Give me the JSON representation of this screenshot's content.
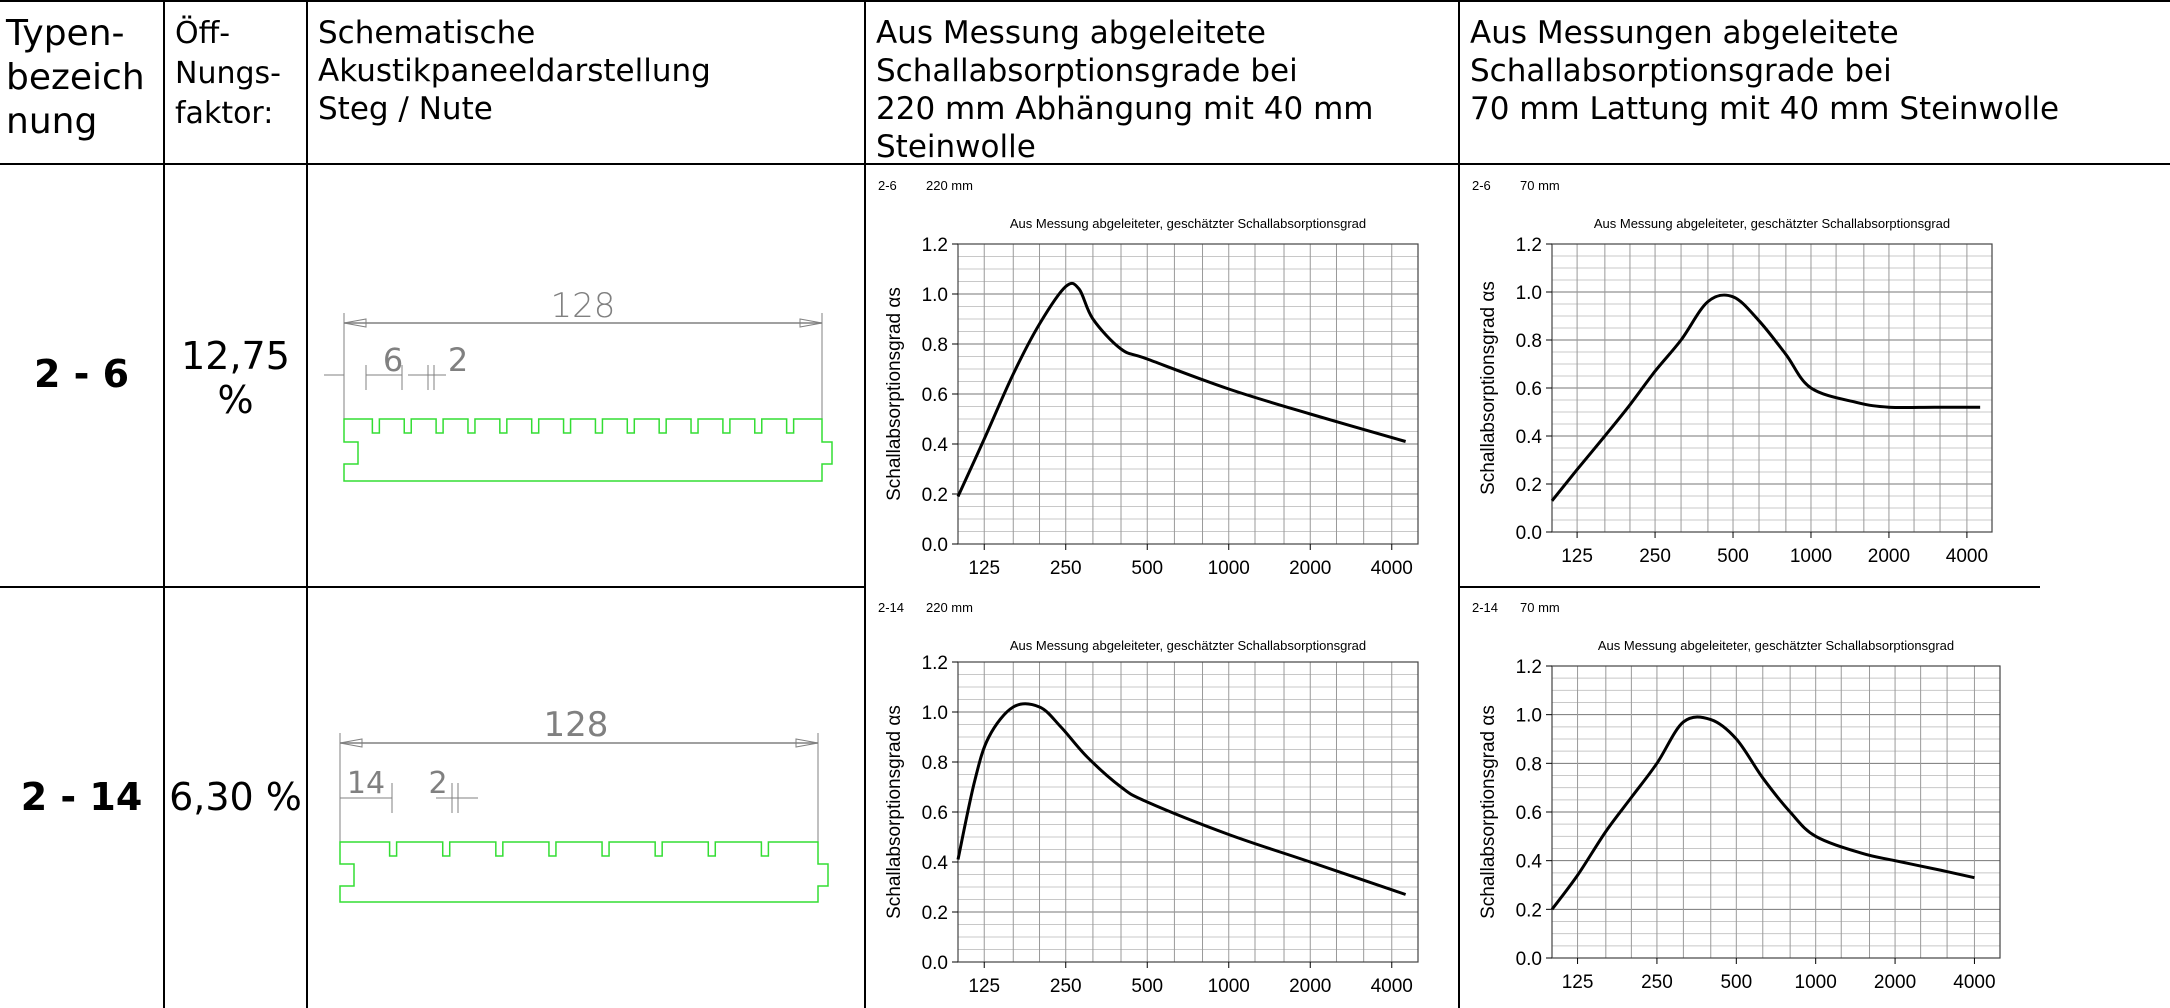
{
  "header": {
    "col1": [
      "Typen-",
      "bezeich",
      "nung"
    ],
    "col2": [
      "Öff-",
      "Nungs-",
      "faktor:"
    ],
    "col3": [
      "Schematische",
      "Akustikpaneeldarstellung",
      "Steg / Nute"
    ],
    "col4": [
      "Aus Messung abgeleitete",
      "Schallabsorptionsgrade bei",
      "220 mm Abhängung mit 40 mm",
      "Steinwolle"
    ],
    "col5": [
      "Aus Messungen abgeleitete",
      "Schallabsorptionsgrade bei",
      "70 mm Lattung mit 40 mm Steinwolle"
    ]
  },
  "rows": [
    {
      "type": "2 - 6",
      "factor": [
        "12,75",
        "%"
      ],
      "drawing": {
        "total": "128",
        "web": "6",
        "slot": "2",
        "slot_count": 14
      },
      "charts": [
        {
          "tag": "2-6",
          "mount": "220 mm",
          "title": "Aus Messung abgeleiteter, geschätzter Schallabsorptionsgrad",
          "ylabel": "Schallabsorptionsgrad αs",
          "yticks": [
            "0.0",
            "0.2",
            "0.4",
            "0.6",
            "0.8",
            "1.0",
            "1.2"
          ],
          "xticks": [
            "125",
            "250",
            "500",
            "1000",
            "2000",
            "4000"
          ]
        },
        {
          "tag": "2-6",
          "mount": "70 mm",
          "title": "Aus Messung abgeleiteter, geschätzter Schallabsorptionsgrad",
          "ylabel": "Schallabsorptionsgrad αs",
          "yticks": [
            "0.0",
            "0.2",
            "0.4",
            "0.6",
            "0.8",
            "1.0",
            "1.2"
          ],
          "xticks": [
            "125",
            "250",
            "500",
            "1000",
            "2000",
            "4000"
          ]
        }
      ]
    },
    {
      "type": "2 - 14",
      "factor": [
        "6,30 %"
      ],
      "drawing": {
        "total": "128",
        "web": "14",
        "slot": "2",
        "slot_count": 8
      },
      "charts": [
        {
          "tag": "2-14",
          "mount": "220 mm",
          "title": "Aus Messung abgeleiteter, geschätzter Schallabsorptionsgrad",
          "ylabel": "Schallabsorptionsgrad αs",
          "yticks": [
            "0.0",
            "0.2",
            "0.4",
            "0.6",
            "0.8",
            "1.0",
            "1.2"
          ],
          "xticks": [
            "125",
            "250",
            "500",
            "1000",
            "2000",
            "4000"
          ]
        },
        {
          "tag": "2-14",
          "mount": "70 mm",
          "title": "Aus Messung abgeleiteter, geschätzter Schallabsorptionsgrad",
          "ylabel": "Schallabsorptionsgrad αs",
          "yticks": [
            "0.0",
            "0.2",
            "0.4",
            "0.6",
            "0.8",
            "1.0",
            "1.2"
          ],
          "xticks": [
            "125",
            "250",
            "500",
            "1000",
            "2000",
            "4000"
          ]
        }
      ]
    }
  ],
  "chart_data": [
    {
      "type": "line",
      "panel": "2-6 220 mm",
      "title": "Aus Messung abgeleiteter, geschätzter Schallabsorptionsgrad",
      "xlabel": "",
      "ylabel": "Schallabsorptionsgrad αs",
      "x_scale": "log",
      "xlim": [
        100,
        5000
      ],
      "ylim": [
        0,
        1.2
      ],
      "grid": true,
      "x": [
        100,
        125,
        160,
        200,
        250,
        280,
        315,
        400,
        500,
        1000,
        2000,
        4500
      ],
      "y": [
        0.19,
        0.42,
        0.68,
        0.88,
        1.03,
        1.02,
        0.9,
        0.78,
        0.74,
        0.62,
        0.52,
        0.41
      ]
    },
    {
      "type": "line",
      "panel": "2-6 70 mm",
      "title": "Aus Messung abgeleiteter, geschätzter Schallabsorptionsgrad",
      "xlabel": "",
      "ylabel": "Schallabsorptionsgrad αs",
      "x_scale": "log",
      "xlim": [
        100,
        5000
      ],
      "ylim": [
        0,
        1.2
      ],
      "grid": true,
      "x": [
        100,
        125,
        160,
        200,
        250,
        315,
        400,
        500,
        630,
        800,
        1000,
        1500,
        2000,
        3000,
        4500
      ],
      "y": [
        0.13,
        0.26,
        0.4,
        0.53,
        0.67,
        0.8,
        0.96,
        0.98,
        0.88,
        0.74,
        0.6,
        0.54,
        0.52,
        0.52,
        0.52
      ]
    },
    {
      "type": "line",
      "panel": "2-14 220 mm",
      "title": "Aus Messung abgeleiteter, geschätzter Schallabsorptionsgrad",
      "xlabel": "",
      "ylabel": "Schallabsorptionsgrad αs",
      "x_scale": "log",
      "xlim": [
        100,
        5000
      ],
      "ylim": [
        0,
        1.2
      ],
      "grid": true,
      "x": [
        100,
        115,
        130,
        160,
        200,
        240,
        300,
        400,
        500,
        1000,
        2000,
        4500
      ],
      "y": [
        0.41,
        0.72,
        0.9,
        1.02,
        1.02,
        0.94,
        0.82,
        0.7,
        0.64,
        0.51,
        0.4,
        0.27
      ]
    },
    {
      "type": "line",
      "panel": "2-14 70 mm",
      "title": "Aus Messung abgeleiteter, geschätzter Schallabsorptionsgrad",
      "xlabel": "",
      "ylabel": "Schallabsorptionsgrad αs",
      "x_scale": "log",
      "xlim": [
        100,
        5000
      ],
      "ylim": [
        0,
        1.2
      ],
      "grid": true,
      "x": [
        100,
        125,
        160,
        200,
        250,
        315,
        400,
        500,
        630,
        800,
        1000,
        1500,
        2000,
        3000,
        4000
      ],
      "y": [
        0.2,
        0.34,
        0.52,
        0.66,
        0.8,
        0.97,
        0.98,
        0.9,
        0.74,
        0.6,
        0.5,
        0.43,
        0.4,
        0.36,
        0.33
      ]
    }
  ]
}
